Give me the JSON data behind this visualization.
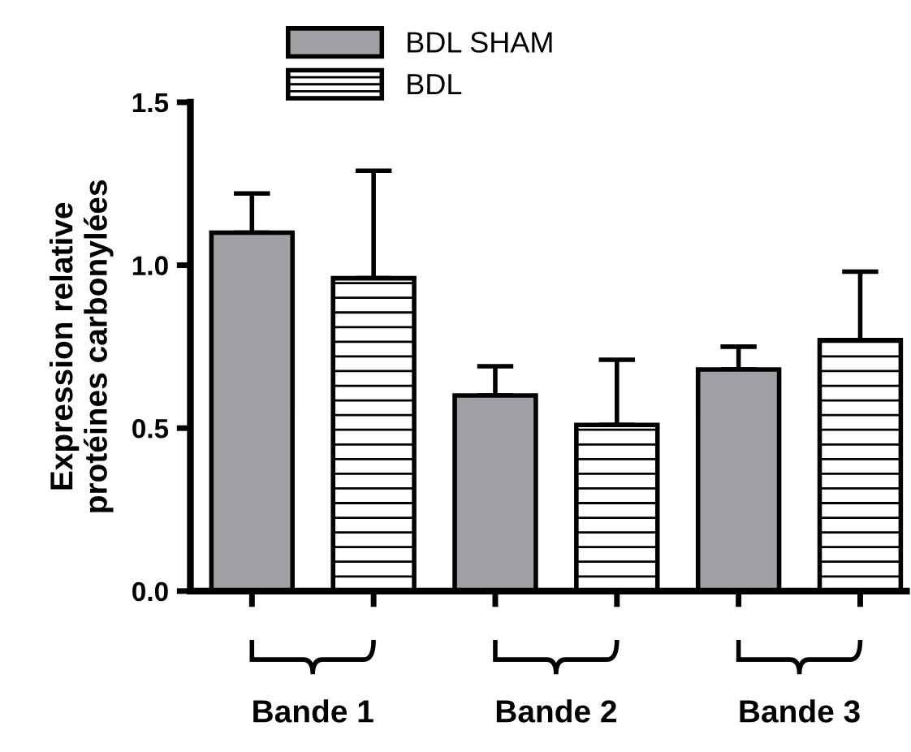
{
  "chart_data": {
    "type": "bar",
    "ylabel": "Expression relative\nprotéines carbonylées",
    "categories": [
      "Bande 1",
      "Bande 2",
      "Bande 3"
    ],
    "series": [
      {
        "name": "BDL SHAM",
        "color": "#a0a0a4",
        "values": [
          1.1,
          0.6,
          0.68
        ],
        "errors": [
          [
            1.1,
            1.22
          ],
          [
            0.6,
            0.69
          ],
          [
            0.68,
            0.75
          ]
        ]
      },
      {
        "name": "BDL",
        "color": "#ffffff",
        "values": [
          0.96,
          0.51,
          0.77
        ],
        "errors": [
          [
            0.96,
            1.29
          ],
          [
            0.51,
            0.71
          ],
          [
            0.77,
            0.98
          ]
        ]
      }
    ],
    "ylim": [
      0,
      1.5
    ],
    "yticks": [
      {
        "value": 0,
        "label": "0.0"
      },
      {
        "value": 0.5,
        "label": "0.5"
      },
      {
        "value": 1.0,
        "label": "1.0"
      },
      {
        "value": 1.5,
        "label": "1.5"
      }
    ],
    "grid": false,
    "legend": "top left"
  }
}
